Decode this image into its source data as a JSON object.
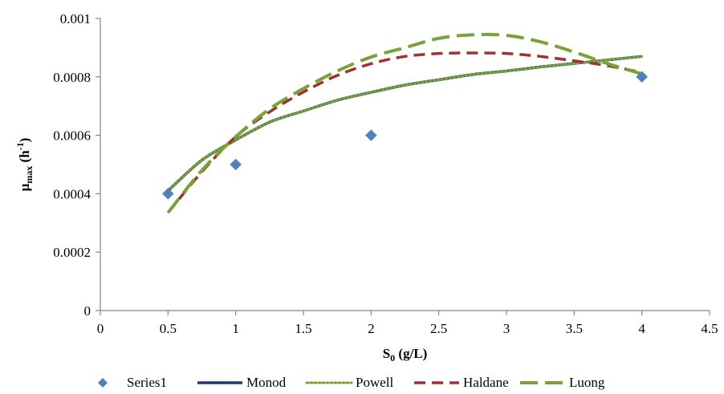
{
  "chart_data": {
    "type": "scatter",
    "xlabel": {
      "main": "S",
      "sub": "0",
      "rest": " (g/L)"
    },
    "ylabel": {
      "main": "μ",
      "sub": "max",
      "rest": " (h",
      "sup": "-1",
      "end": ")"
    },
    "xlim": [
      0,
      4.5
    ],
    "ylim": [
      0,
      0.001
    ],
    "xticks": [
      0,
      0.5,
      1,
      1.5,
      2,
      2.5,
      3,
      3.5,
      4,
      4.5
    ],
    "xtick_labels": [
      "0",
      "0.5",
      "1",
      "1.5",
      "2",
      "2.5",
      "3",
      "3.5",
      "4",
      "4.5"
    ],
    "yticks": [
      0,
      0.0002,
      0.0004,
      0.0006,
      0.0008,
      0.001
    ],
    "ytick_labels": [
      "0",
      "0.0002",
      "0.0004",
      "0.0006",
      "0.0008",
      "0.001"
    ],
    "grid": false,
    "legend_position": "bottom",
    "series": [
      {
        "name": "Series1",
        "kind": "markers",
        "marker": "diamond",
        "color": "#4F81BD",
        "x": [
          0.5,
          1,
          2,
          4
        ],
        "y": [
          0.0004,
          0.0005,
          0.0006,
          0.0008
        ]
      },
      {
        "name": "Monod",
        "kind": "line",
        "style": "solid",
        "color": "#1F3864",
        "x": [
          0.5,
          0.75,
          1,
          1.25,
          1.5,
          1.75,
          2,
          2.25,
          2.5,
          2.75,
          3,
          3.25,
          3.5,
          3.75,
          4
        ],
        "y": [
          0.00041,
          0.000515,
          0.000584,
          0.000645,
          0.000683,
          0.00072,
          0.000747,
          0.000772,
          0.00079,
          0.000808,
          0.00082,
          0.000834,
          0.000846,
          0.000858,
          0.00087
        ]
      },
      {
        "name": "Powell",
        "kind": "line",
        "style": "dotted",
        "color": "#77A338",
        "x": [
          0.5,
          0.75,
          1,
          1.25,
          1.5,
          1.75,
          2,
          2.25,
          2.5,
          2.75,
          3,
          3.25,
          3.5,
          3.75,
          4
        ],
        "y": [
          0.00041,
          0.000515,
          0.000584,
          0.000645,
          0.000683,
          0.00072,
          0.000747,
          0.000772,
          0.00079,
          0.000808,
          0.00082,
          0.000834,
          0.000846,
          0.000858,
          0.00087
        ]
      },
      {
        "name": "Haldane",
        "kind": "line",
        "style": "dashed",
        "color": "#A0322F",
        "x": [
          0.5,
          0.75,
          1,
          1.25,
          1.5,
          1.75,
          2,
          2.25,
          2.5,
          2.75,
          3,
          3.25,
          3.5,
          3.75,
          4
        ],
        "y": [
          0.000335,
          0.000475,
          0.000595,
          0.00068,
          0.000748,
          0.000805,
          0.000845,
          0.00087,
          0.00088,
          0.000882,
          0.00088,
          0.00087,
          0.000855,
          0.000838,
          0.000815
        ]
      },
      {
        "name": "Luong",
        "kind": "line",
        "style": "longdash",
        "color": "#77A338",
        "x": [
          0.5,
          0.75,
          1,
          1.25,
          1.5,
          1.75,
          2,
          2.25,
          2.5,
          2.75,
          3,
          3.25,
          3.5,
          3.75,
          4
        ],
        "y": [
          0.000335,
          0.00048,
          0.000595,
          0.00069,
          0.00076,
          0.00082,
          0.000868,
          0.0009,
          0.000932,
          0.000944,
          0.000942,
          0.00092,
          0.000885,
          0.000845,
          0.00081
        ]
      }
    ]
  }
}
